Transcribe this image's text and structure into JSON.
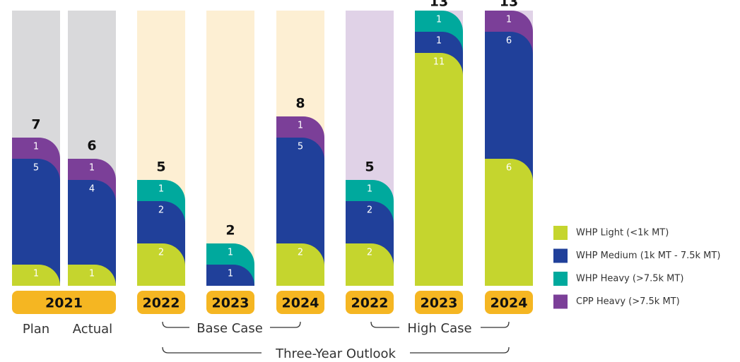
{
  "chart_data": {
    "type": "bar",
    "stacked": true,
    "categories": [
      "Plan",
      "Actual",
      null,
      null,
      null,
      null,
      null,
      null
    ],
    "year_labels": [
      "2021",
      "2022",
      "2023",
      "2024",
      "2022",
      "2023",
      "2024"
    ],
    "group_labels": [
      "Base Case",
      "High Case"
    ],
    "outlook_label": "Three-Year Outlook",
    "totals": [
      7,
      6,
      5,
      2,
      8,
      5,
      13,
      13
    ],
    "series": [
      {
        "name": "WHP Light (<1k MT)",
        "color": "#c5d52e",
        "values": [
          1,
          1,
          2,
          null,
          2,
          2,
          11,
          6
        ]
      },
      {
        "name": "WHP Medium (1k MT - 7.5k MT)",
        "color": "#20409a",
        "values": [
          5,
          4,
          2,
          1,
          5,
          2,
          1,
          6
        ]
      },
      {
        "name": "WHP Heavy (>7.5k MT)",
        "color": "#00a99d",
        "values": [
          null,
          null,
          1,
          1,
          null,
          1,
          1,
          null
        ]
      },
      {
        "name": "CPP Heavy (>7.5k MT)",
        "color": "#7b3f98",
        "values": [
          1,
          1,
          null,
          null,
          1,
          null,
          null,
          1
        ]
      }
    ]
  }
}
